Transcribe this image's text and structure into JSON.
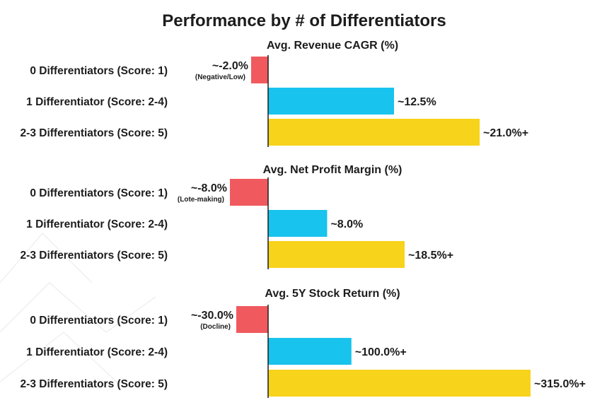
{
  "chart_data": {
    "type": "bar",
    "orientation": "horizontal",
    "title": "Performance by # of Differentiators",
    "categories": [
      "0 Differentiators (Score: 1)",
      "1 Differentiator (Score: 2-4)",
      "2-3 Differentiators (Score: 5)"
    ],
    "colors": [
      "#f05a5f",
      "#18c3ee",
      "#f7d31b"
    ],
    "axis_color": "#1c1c1c",
    "grid": false,
    "panels": [
      {
        "title": "Avg. Revenue CAGR (%)",
        "values": [
          -2.0,
          12.5,
          21.0
        ],
        "value_labels": [
          "~-2.0%",
          "~12.5%",
          "~21.0%+"
        ],
        "notes": [
          "(Negative/Low)",
          "",
          ""
        ]
      },
      {
        "title": "Avg. Net Profit Margin (%)",
        "values": [
          -8.0,
          8.0,
          18.5
        ],
        "value_labels": [
          "~-8.0%",
          "~8.0%",
          "~18.5%+"
        ],
        "notes": [
          "(Lote-making)",
          "",
          ""
        ]
      },
      {
        "title": "Avg. 5Y Stock Return (%)",
        "values": [
          -30.0,
          100.0,
          315.0
        ],
        "value_labels": [
          "~-30.0%",
          "~100.0%+",
          "~315.0%+"
        ],
        "notes": [
          "(Docline)",
          "",
          ""
        ]
      }
    ]
  }
}
